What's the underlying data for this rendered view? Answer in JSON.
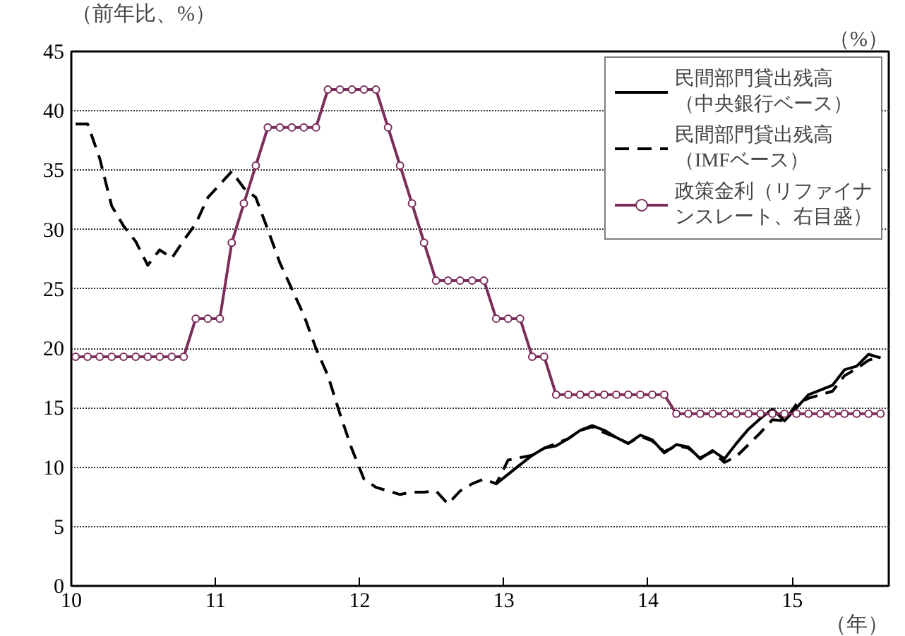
{
  "chart_data": {
    "type": "line",
    "ylabel": "（前年比、%）",
    "y2label": "（%）",
    "xlabel": "（年）",
    "x": [
      10.03,
      10.113,
      10.197,
      10.28,
      10.363,
      10.447,
      10.53,
      10.613,
      10.697,
      10.78,
      10.863,
      10.947,
      11.03,
      11.113,
      11.197,
      11.28,
      11.363,
      11.447,
      11.53,
      11.613,
      11.697,
      11.78,
      11.863,
      11.947,
      12.03,
      12.113,
      12.197,
      12.28,
      12.363,
      12.447,
      12.53,
      12.613,
      12.697,
      12.78,
      12.863,
      12.947,
      13.03,
      13.113,
      13.197,
      13.28,
      13.363,
      13.447,
      13.53,
      13.613,
      13.697,
      13.78,
      13.863,
      13.947,
      14.03,
      14.113,
      14.197,
      14.28,
      14.363,
      14.447,
      14.53,
      14.613,
      14.697,
      14.78,
      14.863,
      14.947,
      15.03,
      15.113,
      15.197,
      15.28,
      15.363,
      15.447,
      15.53,
      15.613
    ],
    "series": [
      {
        "name": "民間部門貸出残高（中央銀行ベース）",
        "color": "#000000",
        "line_style": "solid",
        "marker": "none",
        "x": [
          12.947,
          13.03,
          13.113,
          13.197,
          13.28,
          13.363,
          13.447,
          13.53,
          13.613,
          13.697,
          13.78,
          13.863,
          13.947,
          14.03,
          14.113,
          14.197,
          14.28,
          14.363,
          14.447,
          14.53,
          14.613,
          14.697,
          14.78,
          14.863,
          14.947,
          15.03,
          15.113,
          15.197,
          15.28,
          15.363,
          15.447,
          15.53,
          15.613
        ],
        "values": [
          8.6,
          9.4,
          10.2,
          11.0,
          11.6,
          11.8,
          12.4,
          13.1,
          13.5,
          13.1,
          12.5,
          12.0,
          12.7,
          12.3,
          11.2,
          11.9,
          11.7,
          10.7,
          11.4,
          10.7,
          12.0,
          13.2,
          14.1,
          14.9,
          13.9,
          15.0,
          16.1,
          16.5,
          16.9,
          18.2,
          18.5,
          19.5,
          19.2
        ]
      },
      {
        "name": "民間部門貸出残高（IMFベース）",
        "color": "#000000",
        "line_style": "dashed",
        "marker": "none",
        "values": [
          38.9,
          38.9,
          36,
          32,
          30.3,
          29,
          27,
          28.3,
          27.6,
          29.1,
          30.5,
          32.7,
          33.8,
          34.9,
          33.5,
          32.7,
          30,
          27.2,
          25,
          22.8,
          20,
          17.7,
          14.5,
          11.5,
          9,
          8.3,
          8.0,
          7.7,
          7.9,
          7.9,
          8.0,
          6.9,
          8.0,
          8.6,
          9.0,
          8.6,
          10.6,
          10.8,
          11.0,
          11.6,
          12.0,
          12.4,
          13.1,
          13.4,
          12.9,
          12.5,
          12.0,
          12.6,
          12.2,
          11.3,
          11.8,
          11.6,
          10.8,
          11.3,
          10.4,
          10.9,
          11.9,
          12.9,
          14.0,
          13.9,
          15.3,
          15.8,
          16.1,
          16.4,
          17.7,
          18.3,
          19.0,
          19.3
        ]
      },
      {
        "name": "政策金利（リファイナンスレート、右目盛）",
        "color": "#7b2d5b",
        "line_style": "solid",
        "marker": "circle",
        "values": [
          19.3,
          19.3,
          19.3,
          19.3,
          19.3,
          19.3,
          19.3,
          19.3,
          19.3,
          19.3,
          22.5,
          22.5,
          22.5,
          28.9,
          32.2,
          35.4,
          38.6,
          38.6,
          38.6,
          38.6,
          38.6,
          41.8,
          41.8,
          41.8,
          41.8,
          41.8,
          38.6,
          35.4,
          32.2,
          28.9,
          25.7,
          25.7,
          25.7,
          25.7,
          25.7,
          22.5,
          22.5,
          22.5,
          19.3,
          19.3,
          16.1,
          16.1,
          16.1,
          16.1,
          16.1,
          16.1,
          16.1,
          16.1,
          16.1,
          16.1,
          14.5,
          14.5,
          14.5,
          14.5,
          14.5,
          14.5,
          14.5,
          14.5,
          14.5,
          14.5,
          14.5,
          14.5,
          14.5,
          14.5,
          14.5,
          14.5,
          14.5,
          14.5
        ]
      }
    ],
    "xlim": [
      10,
      15.67
    ],
    "xticks": [
      10,
      11,
      12,
      13,
      14,
      15
    ],
    "ylim": [
      0,
      45
    ],
    "yticks": [
      0,
      5,
      10,
      15,
      20,
      25,
      30,
      35,
      40,
      45
    ],
    "grid": "y",
    "legend": "top right"
  }
}
